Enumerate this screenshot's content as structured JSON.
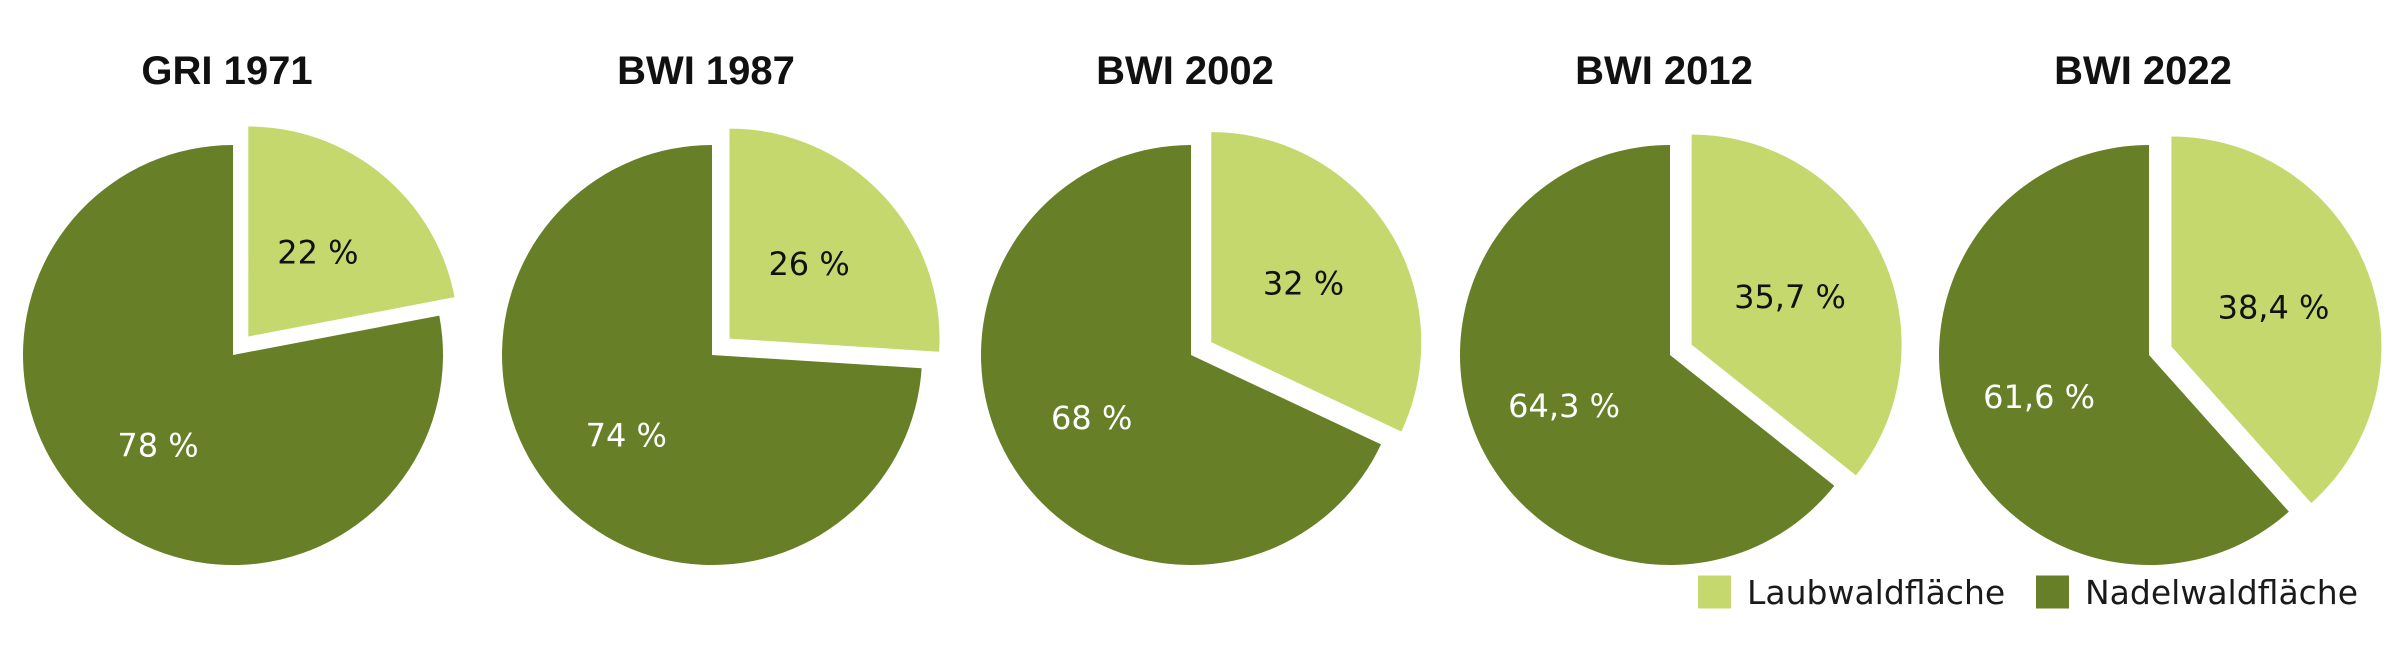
{
  "chart_data": {
    "type": "pie",
    "colors": {
      "Laubwaldfläche": "#c5d86d",
      "Nadelwaldfläche": "#677f27",
      "label_on_light": "#111111",
      "label_on_dark": "#ffffff"
    },
    "legend": {
      "placement": "bottom-right",
      "entries": [
        "Laubwaldfläche",
        "Nadelwaldfläche"
      ]
    },
    "pies": [
      {
        "title": "GRI 1971",
        "slices": [
          {
            "category": "Laubwaldfläche",
            "value": 22,
            "label": "22 %"
          },
          {
            "category": "Nadelwaldfläche",
            "value": 78,
            "label": "78 %"
          }
        ]
      },
      {
        "title": "BWI 1987",
        "slices": [
          {
            "category": "Laubwaldfläche",
            "value": 26,
            "label": "26 %"
          },
          {
            "category": "Nadelwaldfläche",
            "value": 74,
            "label": "74 %"
          }
        ]
      },
      {
        "title": "BWI 2002",
        "slices": [
          {
            "category": "Laubwaldfläche",
            "value": 32,
            "label": "32 %"
          },
          {
            "category": "Nadelwaldfläche",
            "value": 68,
            "label": "68 %"
          }
        ]
      },
      {
        "title": "BWI 2012",
        "slices": [
          {
            "category": "Laubwaldfläche",
            "value": 35.7,
            "label": "35,7 %"
          },
          {
            "category": "Nadelwaldfläche",
            "value": 64.3,
            "label": "64,3 %"
          }
        ]
      },
      {
        "title": "BWI 2022",
        "slices": [
          {
            "category": "Laubwaldfläche",
            "value": 38.4,
            "label": "38,4 %"
          },
          {
            "category": "Nadelwaldfläche",
            "value": 61.6,
            "label": "61,6 %"
          }
        ]
      }
    ]
  }
}
